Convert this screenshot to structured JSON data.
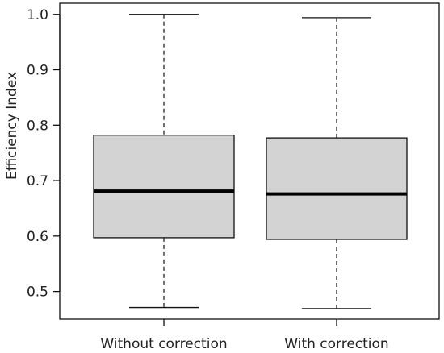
{
  "chart_data": {
    "type": "box",
    "title": "",
    "xlabel": "",
    "ylabel": "Efficiency Index",
    "ylim": [
      0.45,
      1.02
    ],
    "y_ticks": [
      "0.5",
      "0.6",
      "0.7",
      "0.8",
      "0.9",
      "1.0"
    ],
    "grid": false,
    "categories": [
      "Without correction",
      "With correction"
    ],
    "boxes": [
      {
        "min": 0.471,
        "q1": 0.597,
        "median": 0.681,
        "q3": 0.782,
        "max": 1.0
      },
      {
        "min": 0.469,
        "q1": 0.594,
        "median": 0.676,
        "q3": 0.777,
        "max": 0.994
      }
    ],
    "colors": {
      "box_fill": "#d3d3d3",
      "stroke": "#111111",
      "median": "#000000"
    }
  }
}
